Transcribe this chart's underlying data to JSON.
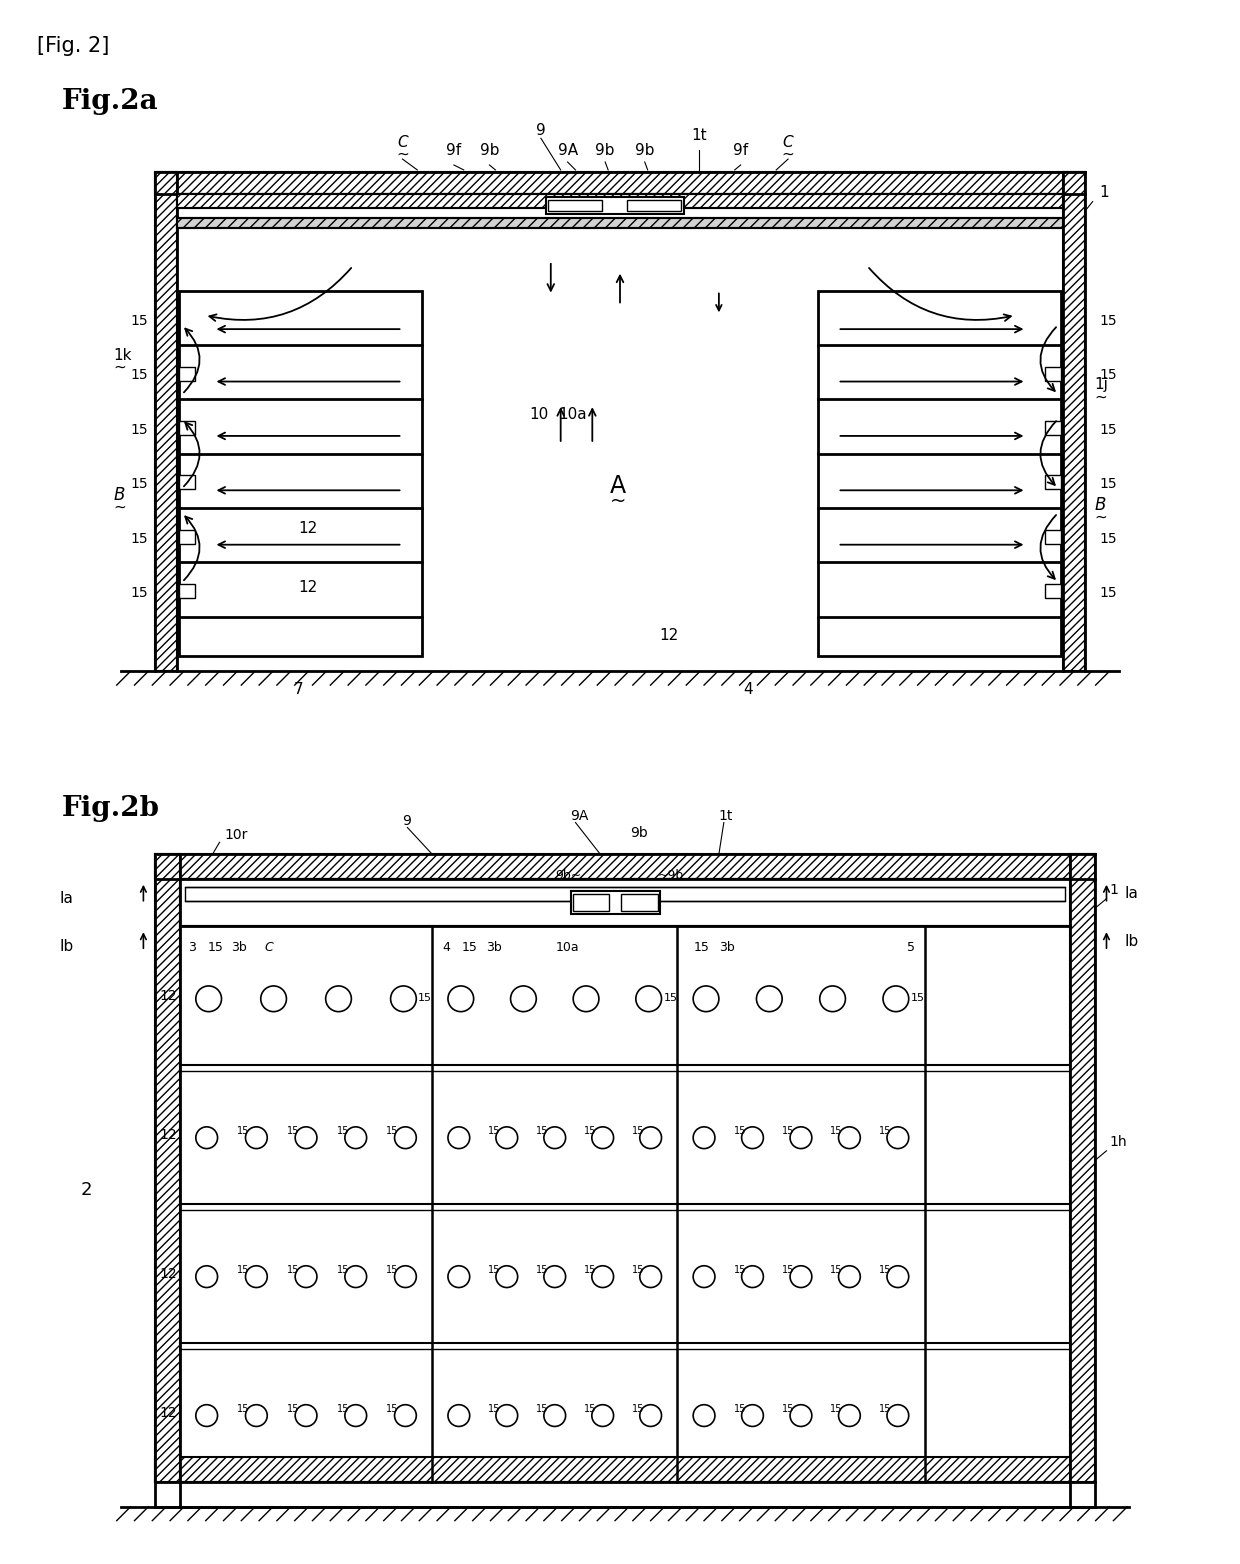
{
  "fig_label": "[Fig. 2]",
  "fig2a_label": "Fig.2a",
  "fig2b_label": "Fig.2b",
  "bg_color": "#ffffff",
  "line_color": "#000000"
}
